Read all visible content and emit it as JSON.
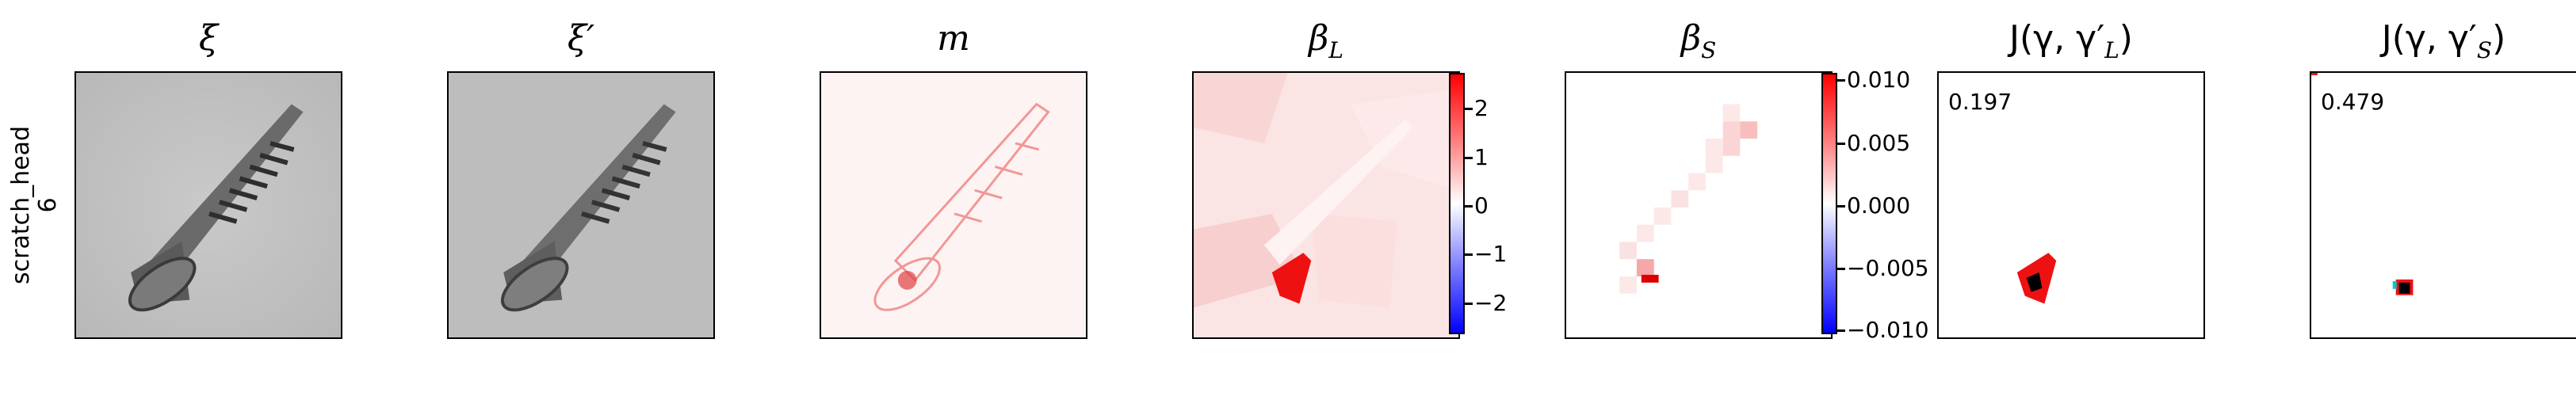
{
  "row_label": {
    "line1": "scratch_head",
    "line2": "6"
  },
  "panels": {
    "xi": {
      "title": "ξ"
    },
    "xi_prime": {
      "title": "ξ′"
    },
    "m": {
      "title": "m"
    },
    "beta_L": {
      "title_base": "β",
      "title_sub": "L"
    },
    "beta_S": {
      "title_base": "β",
      "title_sub": "S"
    },
    "J_L": {
      "title": "J(γ, γ′",
      "title_sub": "L",
      "title_end": ")",
      "value": "0.197"
    },
    "J_S": {
      "title": "J(γ, γ′",
      "title_sub": "S",
      "title_end": ")",
      "value": "0.479"
    }
  },
  "colorbar_L": {
    "ticks": [
      "2",
      "1",
      "0",
      "−1",
      "−2"
    ]
  },
  "colorbar_S": {
    "ticks": [
      "0.010",
      "0.005",
      "0.000",
      "−0.005",
      "−0.010"
    ]
  },
  "colors": {
    "positive": "#ff0000",
    "negative": "#0000ff",
    "overlap": "#000000",
    "accent_cyan": "#00c8c8"
  }
}
